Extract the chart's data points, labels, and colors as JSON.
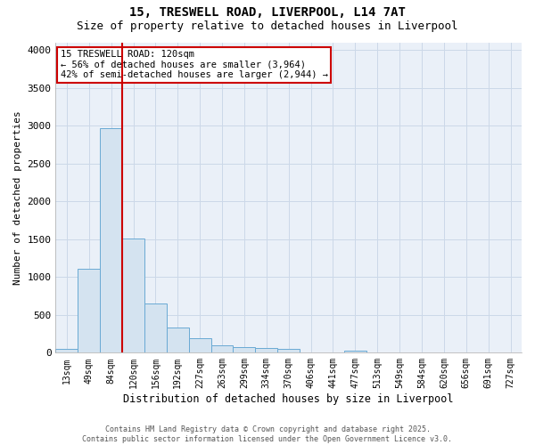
{
  "title_line1": "15, TRESWELL ROAD, LIVERPOOL, L14 7AT",
  "title_line2": "Size of property relative to detached houses in Liverpool",
  "xlabel": "Distribution of detached houses by size in Liverpool",
  "ylabel": "Number of detached properties",
  "categories": [
    "13sqm",
    "49sqm",
    "84sqm",
    "120sqm",
    "156sqm",
    "192sqm",
    "227sqm",
    "263sqm",
    "299sqm",
    "334sqm",
    "370sqm",
    "406sqm",
    "441sqm",
    "477sqm",
    "513sqm",
    "549sqm",
    "584sqm",
    "620sqm",
    "656sqm",
    "691sqm",
    "727sqm"
  ],
  "values": [
    50,
    1110,
    2970,
    1510,
    650,
    330,
    195,
    95,
    80,
    60,
    50,
    0,
    0,
    25,
    0,
    0,
    0,
    0,
    0,
    0,
    0
  ],
  "bar_color": "#d4e3f0",
  "bar_edge_color": "#6aaad4",
  "red_line_index": 3,
  "annotation_text": "15 TRESWELL ROAD: 120sqm\n← 56% of detached houses are smaller (3,964)\n42% of semi-detached houses are larger (2,944) →",
  "annotation_box_color": "#ffffff",
  "annotation_box_edge": "#cc0000",
  "red_line_color": "#cc0000",
  "ylim": [
    0,
    4100
  ],
  "yticks": [
    0,
    500,
    1000,
    1500,
    2000,
    2500,
    3000,
    3500,
    4000
  ],
  "grid_color": "#ccd8e8",
  "bg_color": "#eaf0f8",
  "footer_line1": "Contains HM Land Registry data © Crown copyright and database right 2025.",
  "footer_line2": "Contains public sector information licensed under the Open Government Licence v3.0.",
  "title_fontsize": 10,
  "subtitle_fontsize": 9
}
